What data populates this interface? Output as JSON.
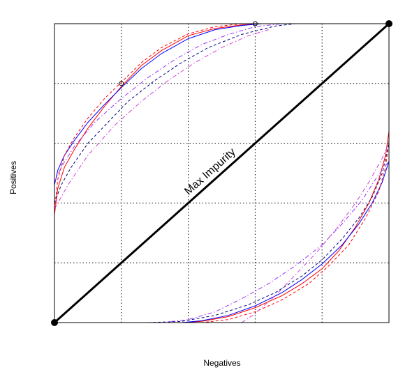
{
  "chart_data": {
    "type": "line",
    "title": "",
    "xlabel": "Negatives",
    "ylabel": "Positives",
    "xlim": [
      0,
      5
    ],
    "ylim": [
      0,
      5
    ],
    "grid": true,
    "grid_x": [
      1,
      2,
      3,
      4
    ],
    "grid_y": [
      1,
      2,
      3,
      4
    ],
    "annotation": "Max Impurity",
    "diagonal": {
      "x": [
        0,
        5
      ],
      "y": [
        0,
        5
      ],
      "color": "#000000"
    },
    "endpoints": [
      {
        "x": 0,
        "y": 0
      },
      {
        "x": 5,
        "y": 5
      }
    ],
    "open_markers": [
      {
        "x": 1.0,
        "y": 4.0
      },
      {
        "x": 3.0,
        "y": 5.0
      }
    ],
    "isometrics": [
      {
        "branch": "upper",
        "curves": [
          {
            "color": "#ff0000",
            "dash": "solid",
            "x": [
              0.0,
              0.05,
              0.15,
              0.3,
              0.5,
              0.75,
              1.0,
              1.3,
              1.6,
              2.0,
              2.4,
              2.8,
              3.1,
              3.3
            ],
            "y": [
              1.8,
              2.25,
              2.6,
              2.9,
              3.25,
              3.62,
              3.95,
              4.3,
              4.55,
              4.8,
              4.92,
              4.98,
              5.0,
              5.0
            ]
          },
          {
            "color": "#0000ff",
            "dash": "solid",
            "x": [
              0.0,
              0.05,
              0.15,
              0.3,
              0.5,
              0.75,
              1.0,
              1.3,
              1.6,
              2.0,
              2.4,
              2.8,
              3.1,
              3.3
            ],
            "y": [
              2.3,
              2.55,
              2.8,
              3.05,
              3.35,
              3.65,
              3.93,
              4.25,
              4.5,
              4.75,
              4.9,
              4.97,
              5.0,
              5.0
            ]
          },
          {
            "color": "#ff0000",
            "dash": "dashed",
            "x": [
              0.0,
              0.05,
              0.15,
              0.3,
              0.5,
              0.75,
              1.0,
              1.3,
              1.6,
              2.0,
              2.4,
              2.8,
              3.1
            ],
            "y": [
              1.9,
              2.4,
              2.8,
              3.1,
              3.42,
              3.75,
              4.02,
              4.35,
              4.6,
              4.83,
              4.95,
              5.0,
              5.0
            ]
          },
          {
            "color": "#000080",
            "dash": "dashed",
            "x": [
              0.0,
              0.1,
              0.25,
              0.5,
              0.8,
              1.1,
              1.5,
              1.9,
              2.3,
              2.8,
              3.3,
              3.6
            ],
            "y": [
              2.0,
              2.3,
              2.6,
              3.0,
              3.35,
              3.7,
              4.05,
              4.35,
              4.6,
              4.82,
              4.96,
              5.0
            ]
          },
          {
            "color": "#9b30ff",
            "dash": "dashdot",
            "x": [
              0.0,
              0.1,
              0.3,
              0.6,
              1.0,
              1.4,
              1.8,
              2.2,
              2.6,
              3.0,
              3.4
            ],
            "y": [
              2.35,
              2.6,
              2.95,
              3.35,
              3.75,
              4.1,
              4.4,
              4.65,
              4.82,
              4.95,
              5.0
            ]
          },
          {
            "color": "#d040d0",
            "dash": "dashdot",
            "x": [
              0.0,
              0.2,
              0.5,
              0.9,
              1.3,
              1.7,
              2.1,
              2.5,
              2.9,
              3.2
            ],
            "y": [
              1.9,
              2.3,
              2.8,
              3.3,
              3.7,
              4.05,
              4.35,
              4.6,
              4.8,
              4.9
            ]
          }
        ]
      },
      {
        "branch": "lower",
        "curves": [
          {
            "color": "#ff0000",
            "dash": "solid",
            "x": [
              1.7,
              1.9,
              2.2,
              2.6,
              3.0,
              3.4,
              3.7,
              4.0,
              4.25,
              4.5,
              4.7,
              4.85,
              4.95,
              5.0
            ],
            "y": [
              0.0,
              0.0,
              0.02,
              0.1,
              0.25,
              0.45,
              0.65,
              0.9,
              1.2,
              1.6,
              2.0,
              2.4,
              2.8,
              3.2
            ]
          },
          {
            "color": "#0000ff",
            "dash": "solid",
            "x": [
              1.7,
              1.9,
              2.2,
              2.6,
              3.0,
              3.4,
              3.7,
              4.0,
              4.3,
              4.55,
              4.75,
              4.9,
              5.0
            ],
            "y": [
              0.0,
              0.0,
              0.03,
              0.12,
              0.28,
              0.5,
              0.72,
              0.98,
              1.3,
              1.65,
              2.0,
              2.35,
              2.7
            ]
          },
          {
            "color": "#ff0000",
            "dash": "dashed",
            "x": [
              1.9,
              2.2,
              2.6,
              3.0,
              3.4,
              3.8,
              4.1,
              4.4,
              4.65,
              4.85,
              4.95,
              5.0
            ],
            "y": [
              0.0,
              0.0,
              0.05,
              0.18,
              0.38,
              0.65,
              0.95,
              1.3,
              1.75,
              2.2,
              2.6,
              3.05
            ]
          },
          {
            "color": "#000080",
            "dash": "dashed",
            "x": [
              1.4,
              1.9,
              2.4,
              2.9,
              3.3,
              3.7,
              4.0,
              4.3,
              4.55,
              4.75,
              4.9,
              5.0
            ],
            "y": [
              0.0,
              0.02,
              0.12,
              0.3,
              0.5,
              0.78,
              1.05,
              1.4,
              1.75,
              2.1,
              2.5,
              3.0
            ]
          },
          {
            "color": "#9b30ff",
            "dash": "dashdot",
            "x": [
              1.6,
              2.0,
              2.4,
              2.8,
              3.2,
              3.6,
              4.0,
              4.3,
              4.6,
              4.8,
              5.0
            ],
            "y": [
              0.0,
              0.05,
              0.18,
              0.4,
              0.65,
              0.95,
              1.3,
              1.65,
              2.05,
              2.4,
              2.7
            ]
          },
          {
            "color": "#d040d0",
            "dash": "dashdot",
            "x": [
              2.8,
              3.0,
              3.3,
              3.6,
              3.9,
              4.2,
              4.5,
              4.7,
              4.9,
              5.0
            ],
            "y": [
              0.0,
              0.15,
              0.45,
              0.8,
              1.15,
              1.55,
              2.0,
              2.35,
              2.75,
              3.0
            ]
          }
        ]
      }
    ]
  }
}
